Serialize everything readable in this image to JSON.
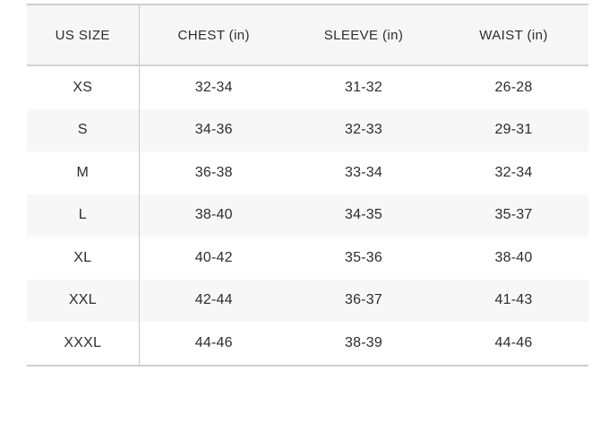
{
  "chart_data": {
    "type": "table",
    "columns": [
      "US SIZE",
      "CHEST (in)",
      "SLEEVE (in)",
      "WAIST (in)"
    ],
    "rows": [
      [
        "XS",
        "32-34",
        "31-32",
        "26-28"
      ],
      [
        "S",
        "34-36",
        "32-33",
        "29-31"
      ],
      [
        "M",
        "36-38",
        "33-34",
        "32-34"
      ],
      [
        "L",
        "38-40",
        "34-35",
        "35-37"
      ],
      [
        "XL",
        "40-42",
        "35-36",
        "38-40"
      ],
      [
        "XXL",
        "42-44",
        "36-37",
        "41-43"
      ],
      [
        "XXXL",
        "44-46",
        "38-39",
        "44-46"
      ]
    ],
    "layout": {
      "striped_rows": "even",
      "divider_after_first_column": true
    }
  },
  "colors": {
    "header_bg": "#f6f6f6",
    "stripe_bg": "#f7f7f7",
    "border": "#cfcfcf",
    "divider": "#c9c9c9",
    "text": "#2d2d2d"
  }
}
